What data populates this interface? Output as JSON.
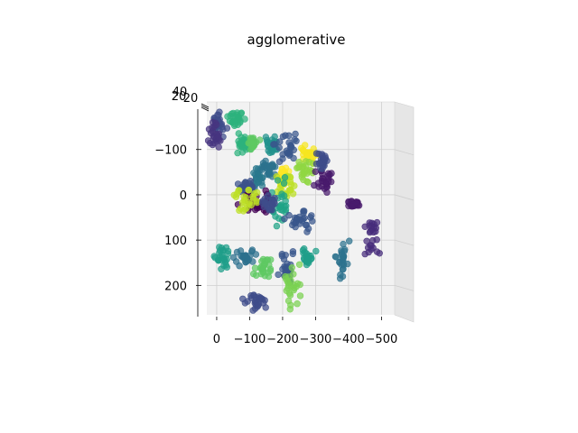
{
  "chart_data": {
    "type": "scatter",
    "projection": "3d",
    "title": "agglomerative",
    "x_ticks": [
      "0",
      "−100",
      "−200",
      "−300",
      "−400",
      "−500"
    ],
    "y_ticks": [
      "−100",
      "0",
      "100",
      "200"
    ],
    "z_ticks": [
      "40",
      "20",
      "20"
    ],
    "xlim": [
      30,
      -540
    ],
    "ylim": [
      -205,
      265
    ],
    "grid": true,
    "colormap": "viridis",
    "clusters": [
      {
        "color": "#3e4c8a",
        "x": -5,
        "y": -160,
        "spread": [
          10,
          14
        ]
      },
      {
        "color": "#463480",
        "x": 5,
        "y": -130,
        "spread": [
          9,
          14
        ]
      },
      {
        "color": "#2db27d",
        "x": -60,
        "y": -170,
        "spread": [
          13,
          8
        ]
      },
      {
        "color": "#2db27d",
        "x": -80,
        "y": -110,
        "spread": [
          10,
          10
        ]
      },
      {
        "color": "#5ec962",
        "x": -110,
        "y": -115,
        "spread": [
          8,
          6
        ]
      },
      {
        "color": "#21918c",
        "x": -165,
        "y": -110,
        "spread": [
          10,
          8
        ]
      },
      {
        "color": "#39568c",
        "x": -210,
        "y": -110,
        "spread": [
          18,
          15
        ]
      },
      {
        "color": "#f6e620",
        "x": -275,
        "y": -90,
        "spread": [
          12,
          8
        ]
      },
      {
        "color": "#90d743",
        "x": -270,
        "y": -55,
        "spread": [
          15,
          12
        ]
      },
      {
        "color": "#481a6c",
        "x": -325,
        "y": -30,
        "spread": [
          15,
          15
        ]
      },
      {
        "color": "#3e4c8a",
        "x": -320,
        "y": -75,
        "spread": [
          8,
          8
        ]
      },
      {
        "color": "#2a788e",
        "x": -130,
        "y": -40,
        "spread": [
          10,
          14
        ]
      },
      {
        "color": "#2c728e",
        "x": -160,
        "y": -60,
        "spread": [
          12,
          10
        ]
      },
      {
        "color": "#3b528b",
        "x": -90,
        "y": -20,
        "spread": [
          10,
          8
        ]
      },
      {
        "color": "#fde725",
        "x": -200,
        "y": -40,
        "spread": [
          8,
          10
        ]
      },
      {
        "color": "#bddf26",
        "x": -210,
        "y": -20,
        "spread": [
          18,
          14
        ]
      },
      {
        "color": "#20a386",
        "x": -195,
        "y": 20,
        "spread": [
          12,
          25
        ]
      },
      {
        "color": "#440154",
        "x": -120,
        "y": 15,
        "spread": [
          25,
          15
        ]
      },
      {
        "color": "#bddf26",
        "x": -85,
        "y": 15,
        "spread": [
          15,
          15
        ]
      },
      {
        "color": "#3e4c8a",
        "x": -160,
        "y": 20,
        "spread": [
          10,
          10
        ]
      },
      {
        "color": "#39568c",
        "x": -250,
        "y": 55,
        "spread": [
          20,
          15
        ]
      },
      {
        "color": "#481a6c",
        "x": -415,
        "y": 20,
        "spread": [
          10,
          4
        ]
      },
      {
        "color": "#472d7b",
        "x": -470,
        "y": 90,
        "spread": [
          12,
          25
        ]
      },
      {
        "color": "#1f9e89",
        "x": -15,
        "y": 135,
        "spread": [
          12,
          15
        ]
      },
      {
        "color": "#5ec962",
        "x": -140,
        "y": 160,
        "spread": [
          18,
          12
        ]
      },
      {
        "color": "#2d708e",
        "x": -90,
        "y": 140,
        "spread": [
          15,
          10
        ]
      },
      {
        "color": "#39568c",
        "x": -210,
        "y": 165,
        "spread": [
          12,
          20
        ]
      },
      {
        "color": "#1f9e89",
        "x": -280,
        "y": 140,
        "spread": [
          12,
          8
        ]
      },
      {
        "color": "#7ad151",
        "x": -225,
        "y": 200,
        "spread": [
          15,
          18
        ]
      },
      {
        "color": "#3e4c8a",
        "x": -120,
        "y": 235,
        "spread": [
          20,
          12
        ]
      },
      {
        "color": "#2c728e",
        "x": -380,
        "y": 140,
        "spread": [
          10,
          25
        ]
      }
    ]
  }
}
